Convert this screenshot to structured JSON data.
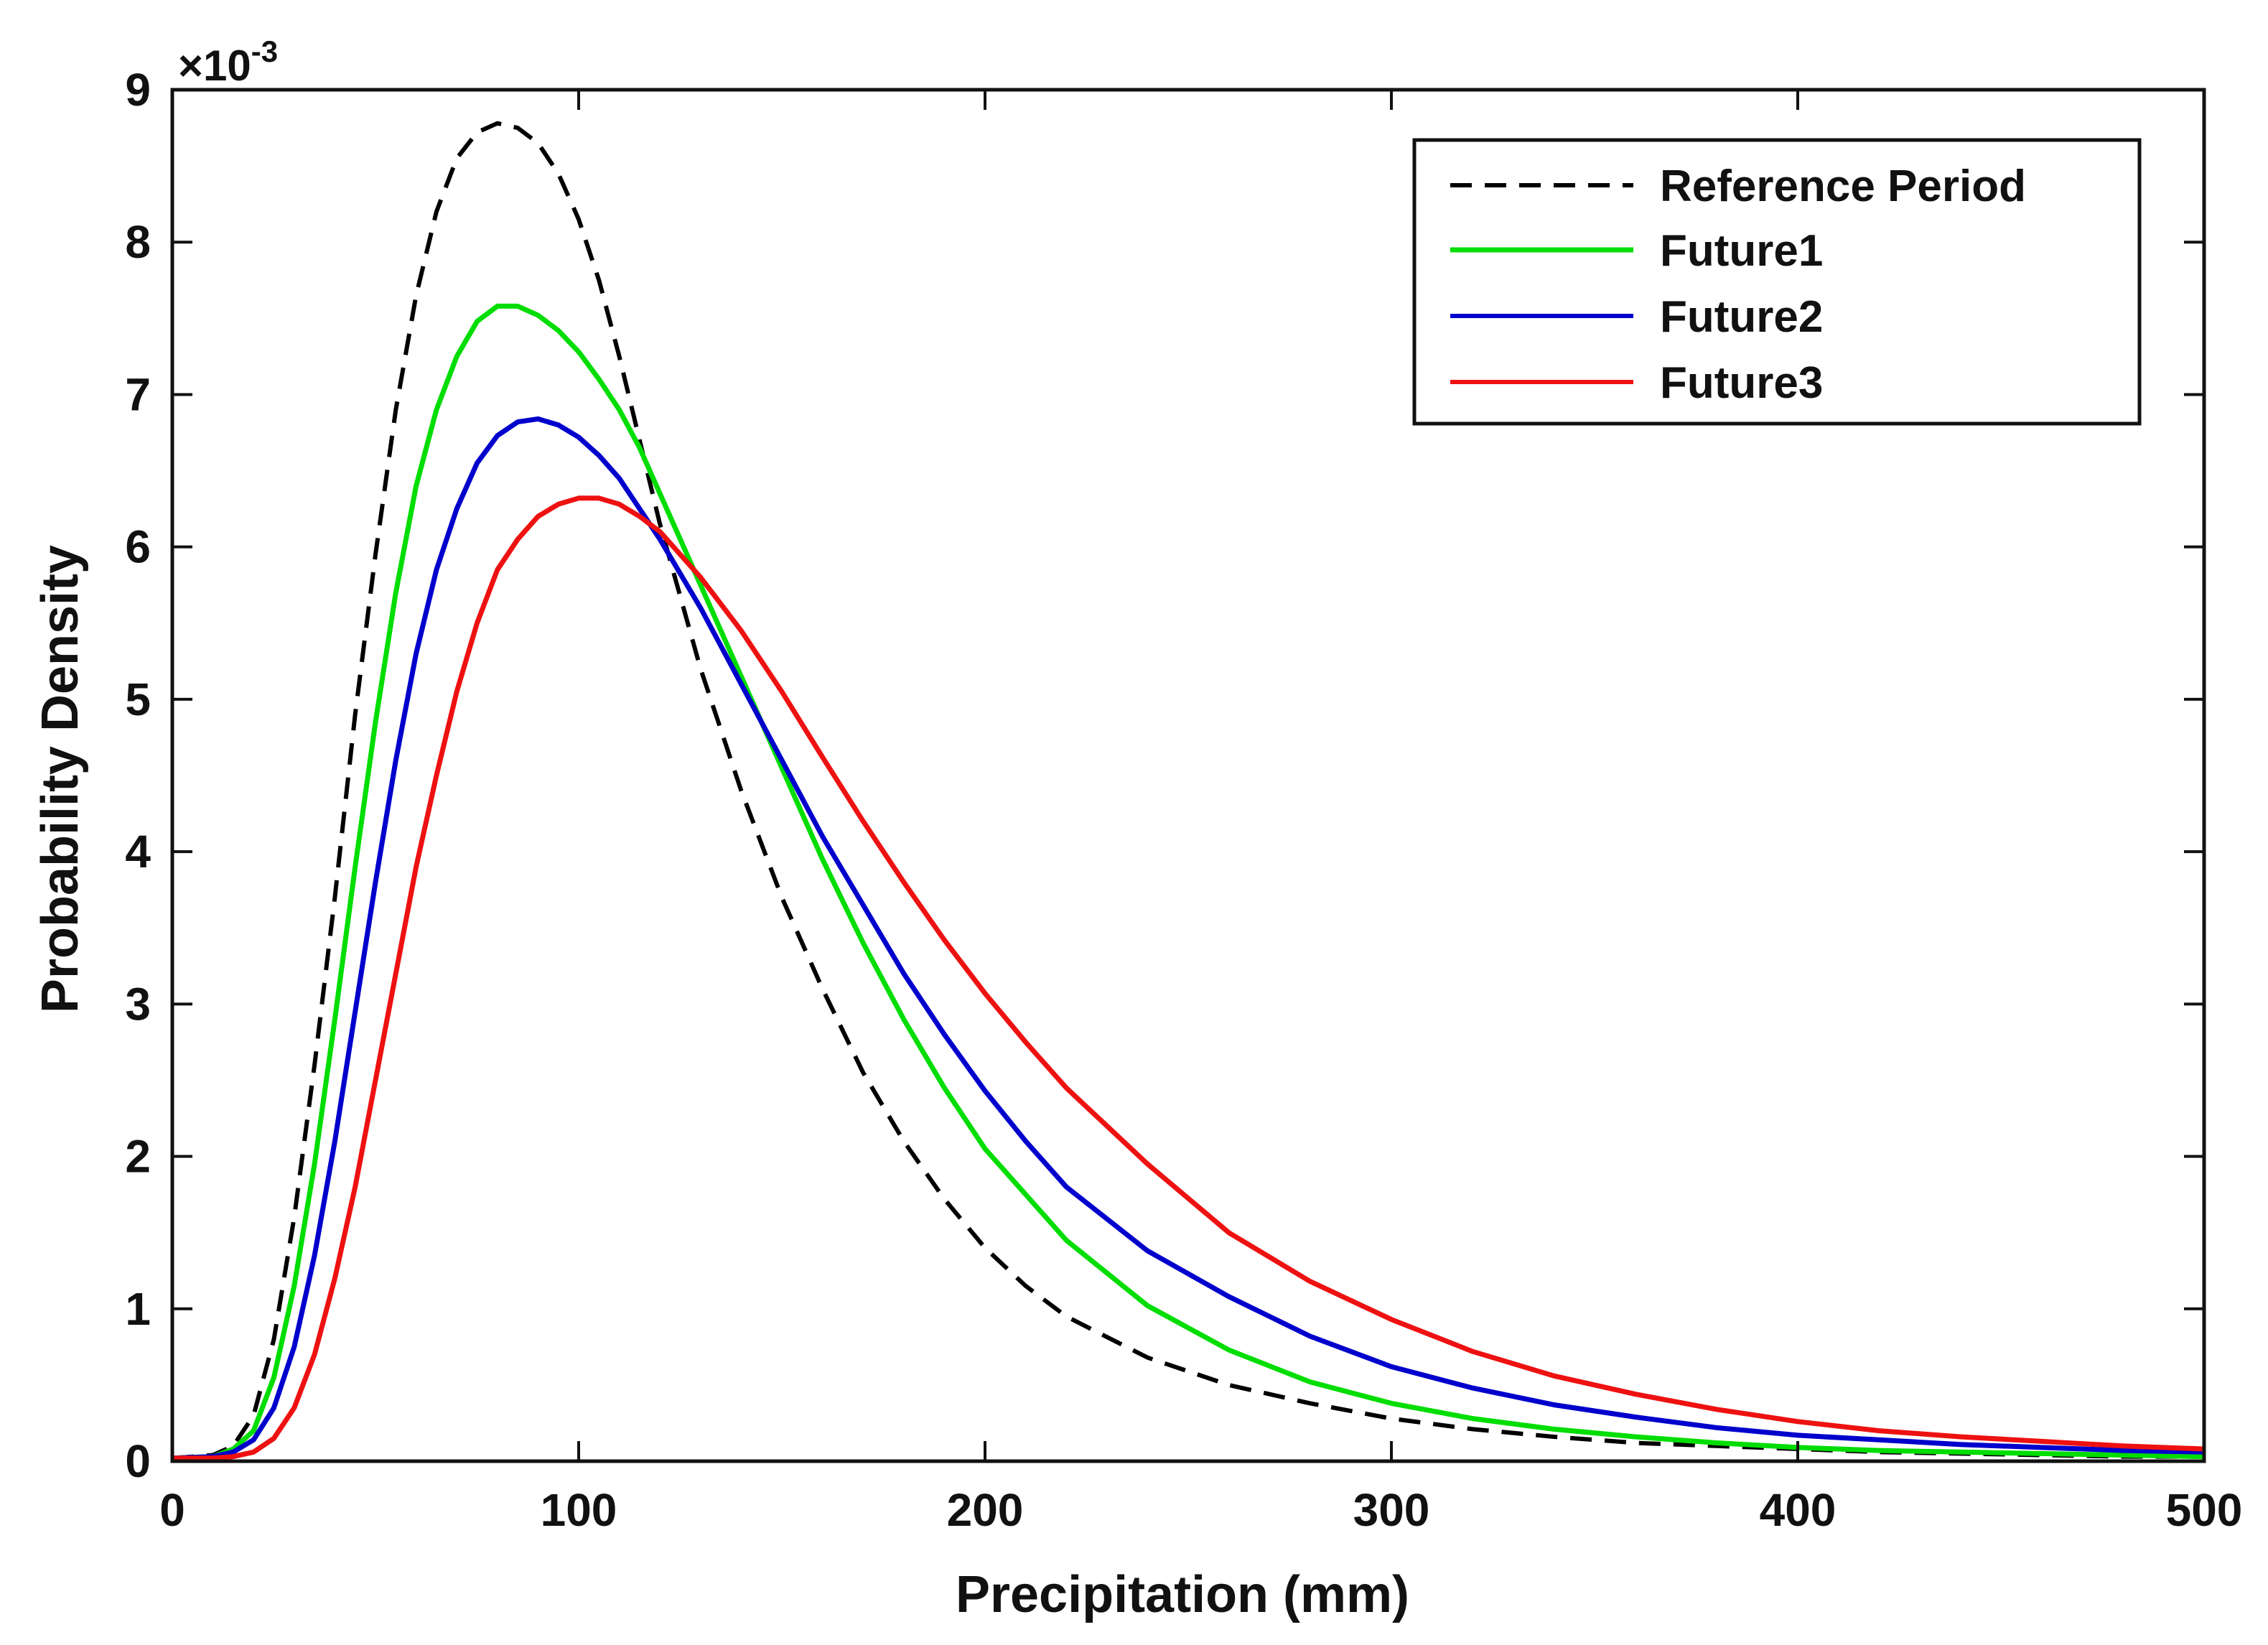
{
  "chart_data": {
    "type": "line",
    "title": "",
    "xlabel": "Precipitation (mm)",
    "ylabel": "Probability Density",
    "xlim": [
      0,
      500
    ],
    "ylim": [
      0,
      9
    ],
    "xticks": [
      0,
      100,
      200,
      300,
      400,
      500
    ],
    "yticks": [
      0,
      1,
      2,
      3,
      4,
      5,
      6,
      7,
      8,
      9
    ],
    "x_tick_labels": [
      "0",
      "100",
      "200",
      "300",
      "400",
      "500"
    ],
    "y_tick_labels": [
      "0",
      "1",
      "2",
      "3",
      "4",
      "5",
      "6",
      "7",
      "8",
      "9"
    ],
    "y_exponent": {
      "base": "×10",
      "power": "-3"
    },
    "grid": false,
    "legend_position": "top-right",
    "series": [
      {
        "name": "Reference Period",
        "color": "#000000",
        "style": "dashed",
        "points": [
          [
            0,
            0.02
          ],
          [
            10,
            0.04
          ],
          [
            15,
            0.1
          ],
          [
            20,
            0.3
          ],
          [
            25,
            0.8
          ],
          [
            30,
            1.6
          ],
          [
            35,
            2.6
          ],
          [
            40,
            3.7
          ],
          [
            45,
            4.9
          ],
          [
            50,
            5.95
          ],
          [
            55,
            6.9
          ],
          [
            60,
            7.65
          ],
          [
            65,
            8.2
          ],
          [
            70,
            8.55
          ],
          [
            75,
            8.72
          ],
          [
            80,
            8.78
          ],
          [
            85,
            8.75
          ],
          [
            90,
            8.65
          ],
          [
            95,
            8.45
          ],
          [
            100,
            8.15
          ],
          [
            105,
            7.75
          ],
          [
            110,
            7.25
          ],
          [
            115,
            6.7
          ],
          [
            120,
            6.15
          ],
          [
            130,
            5.2
          ],
          [
            140,
            4.4
          ],
          [
            150,
            3.7
          ],
          [
            160,
            3.1
          ],
          [
            170,
            2.55
          ],
          [
            180,
            2.1
          ],
          [
            190,
            1.72
          ],
          [
            200,
            1.4
          ],
          [
            210,
            1.15
          ],
          [
            220,
            0.95
          ],
          [
            240,
            0.68
          ],
          [
            260,
            0.5
          ],
          [
            280,
            0.38
          ],
          [
            300,
            0.28
          ],
          [
            320,
            0.21
          ],
          [
            340,
            0.16
          ],
          [
            360,
            0.12
          ],
          [
            380,
            0.1
          ],
          [
            400,
            0.08
          ],
          [
            420,
            0.06
          ],
          [
            440,
            0.05
          ],
          [
            460,
            0.04
          ],
          [
            480,
            0.03
          ],
          [
            500,
            0.03
          ]
        ]
      },
      {
        "name": "Future1",
        "color": "#00dd00",
        "style": "solid",
        "points": [
          [
            0,
            0.02
          ],
          [
            10,
            0.03
          ],
          [
            15,
            0.08
          ],
          [
            20,
            0.2
          ],
          [
            25,
            0.55
          ],
          [
            30,
            1.15
          ],
          [
            35,
            1.95
          ],
          [
            40,
            2.9
          ],
          [
            45,
            3.9
          ],
          [
            50,
            4.85
          ],
          [
            55,
            5.7
          ],
          [
            60,
            6.4
          ],
          [
            65,
            6.9
          ],
          [
            70,
            7.25
          ],
          [
            75,
            7.48
          ],
          [
            80,
            7.58
          ],
          [
            85,
            7.58
          ],
          [
            90,
            7.52
          ],
          [
            95,
            7.42
          ],
          [
            100,
            7.28
          ],
          [
            105,
            7.1
          ],
          [
            110,
            6.9
          ],
          [
            115,
            6.65
          ],
          [
            120,
            6.35
          ],
          [
            130,
            5.75
          ],
          [
            140,
            5.15
          ],
          [
            150,
            4.55
          ],
          [
            160,
            3.95
          ],
          [
            170,
            3.4
          ],
          [
            180,
            2.9
          ],
          [
            190,
            2.45
          ],
          [
            200,
            2.05
          ],
          [
            210,
            1.75
          ],
          [
            220,
            1.45
          ],
          [
            240,
            1.02
          ],
          [
            260,
            0.73
          ],
          [
            280,
            0.52
          ],
          [
            300,
            0.38
          ],
          [
            320,
            0.28
          ],
          [
            340,
            0.21
          ],
          [
            360,
            0.16
          ],
          [
            380,
            0.12
          ],
          [
            400,
            0.09
          ],
          [
            420,
            0.07
          ],
          [
            440,
            0.06
          ],
          [
            460,
            0.05
          ],
          [
            480,
            0.04
          ],
          [
            500,
            0.03
          ]
        ]
      },
      {
        "name": "Future2",
        "color": "#0000cc",
        "style": "solid",
        "points": [
          [
            0,
            0.02
          ],
          [
            10,
            0.03
          ],
          [
            15,
            0.06
          ],
          [
            20,
            0.14
          ],
          [
            25,
            0.35
          ],
          [
            30,
            0.75
          ],
          [
            35,
            1.35
          ],
          [
            40,
            2.1
          ],
          [
            45,
            2.95
          ],
          [
            50,
            3.8
          ],
          [
            55,
            4.6
          ],
          [
            60,
            5.3
          ],
          [
            65,
            5.85
          ],
          [
            70,
            6.25
          ],
          [
            75,
            6.55
          ],
          [
            80,
            6.73
          ],
          [
            85,
            6.82
          ],
          [
            90,
            6.84
          ],
          [
            95,
            6.8
          ],
          [
            100,
            6.72
          ],
          [
            105,
            6.6
          ],
          [
            110,
            6.45
          ],
          [
            115,
            6.25
          ],
          [
            120,
            6.05
          ],
          [
            130,
            5.6
          ],
          [
            140,
            5.1
          ],
          [
            150,
            4.6
          ],
          [
            160,
            4.1
          ],
          [
            170,
            3.65
          ],
          [
            180,
            3.2
          ],
          [
            190,
            2.8
          ],
          [
            200,
            2.43
          ],
          [
            210,
            2.1
          ],
          [
            220,
            1.8
          ],
          [
            240,
            1.38
          ],
          [
            260,
            1.08
          ],
          [
            270,
            0.95
          ],
          [
            280,
            0.82
          ],
          [
            300,
            0.62
          ],
          [
            320,
            0.48
          ],
          [
            340,
            0.37
          ],
          [
            360,
            0.29
          ],
          [
            380,
            0.22
          ],
          [
            400,
            0.17
          ],
          [
            420,
            0.14
          ],
          [
            440,
            0.11
          ],
          [
            460,
            0.09
          ],
          [
            480,
            0.07
          ],
          [
            500,
            0.06
          ]
        ]
      },
      {
        "name": "Future3",
        "color": "#ee1111",
        "style": "solid",
        "points": [
          [
            0,
            0.02
          ],
          [
            10,
            0.02
          ],
          [
            15,
            0.03
          ],
          [
            20,
            0.06
          ],
          [
            25,
            0.15
          ],
          [
            30,
            0.35
          ],
          [
            35,
            0.7
          ],
          [
            40,
            1.2
          ],
          [
            45,
            1.8
          ],
          [
            50,
            2.5
          ],
          [
            55,
            3.2
          ],
          [
            60,
            3.9
          ],
          [
            65,
            4.5
          ],
          [
            70,
            5.05
          ],
          [
            75,
            5.5
          ],
          [
            80,
            5.85
          ],
          [
            85,
            6.05
          ],
          [
            90,
            6.2
          ],
          [
            95,
            6.28
          ],
          [
            100,
            6.32
          ],
          [
            105,
            6.32
          ],
          [
            110,
            6.28
          ],
          [
            115,
            6.2
          ],
          [
            120,
            6.1
          ],
          [
            130,
            5.8
          ],
          [
            140,
            5.45
          ],
          [
            150,
            5.05
          ],
          [
            160,
            4.62
          ],
          [
            170,
            4.2
          ],
          [
            180,
            3.8
          ],
          [
            190,
            3.42
          ],
          [
            200,
            3.07
          ],
          [
            210,
            2.75
          ],
          [
            220,
            2.45
          ],
          [
            240,
            1.95
          ],
          [
            260,
            1.5
          ],
          [
            280,
            1.18
          ],
          [
            300,
            0.93
          ],
          [
            320,
            0.72
          ],
          [
            340,
            0.56
          ],
          [
            360,
            0.44
          ],
          [
            380,
            0.34
          ],
          [
            400,
            0.26
          ],
          [
            420,
            0.2
          ],
          [
            440,
            0.16
          ],
          [
            460,
            0.13
          ],
          [
            480,
            0.1
          ],
          [
            500,
            0.08
          ]
        ]
      }
    ]
  }
}
